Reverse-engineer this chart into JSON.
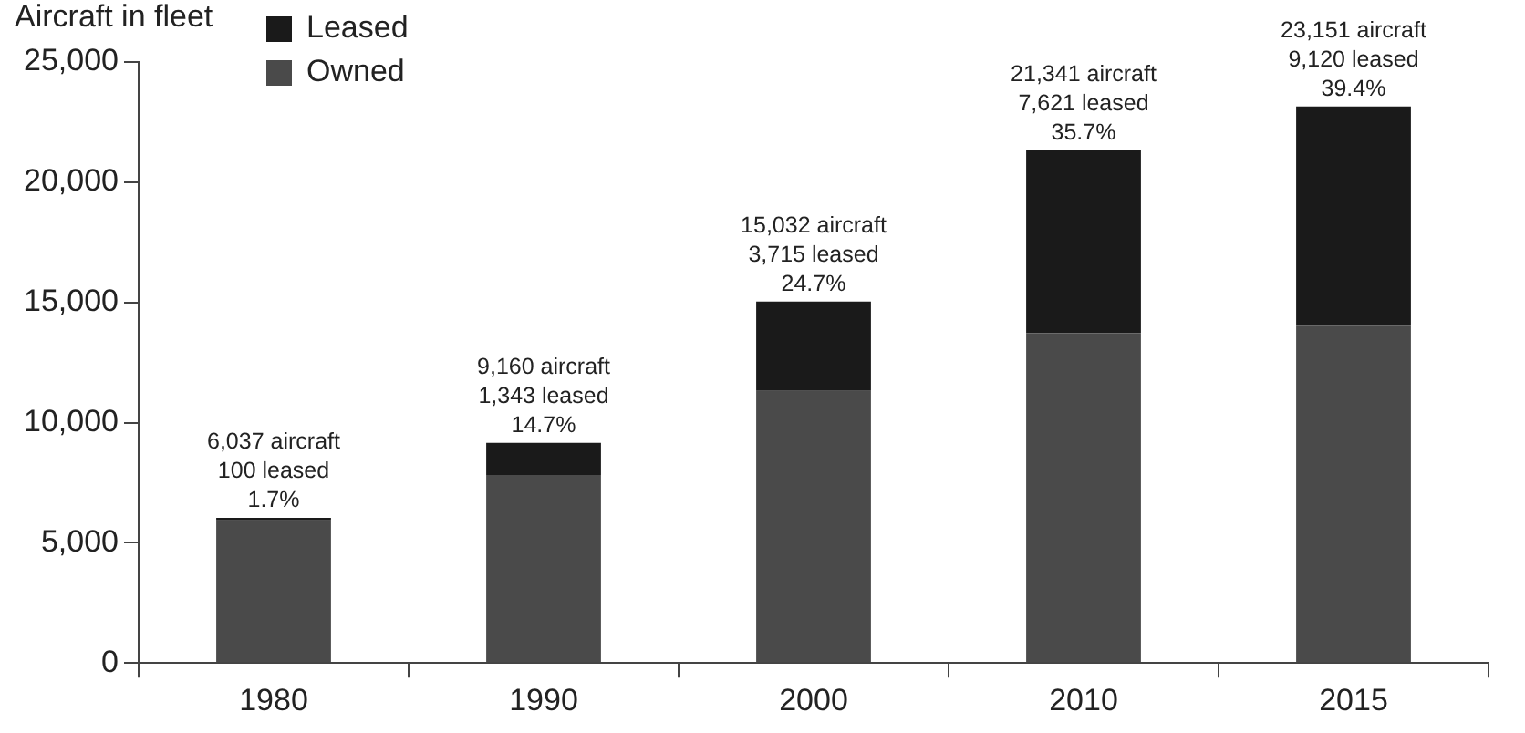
{
  "chart_data": {
    "type": "bar",
    "stacked": true,
    "ylabel": "Aircraft in fleet",
    "categories": [
      "1980",
      "1990",
      "2000",
      "2010",
      "2015"
    ],
    "series": [
      {
        "name": "Owned",
        "color": "#4a4a4a",
        "values": [
          5937,
          7817,
          11317,
          13720,
          14031
        ]
      },
      {
        "name": "Leased",
        "color": "#1a1a1a",
        "values": [
          100,
          1343,
          3715,
          7621,
          9120
        ]
      }
    ],
    "totals": [
      "6,037 aircraft\n100 leased\n1.7%",
      "9,160 aircraft\n1,343 leased\n14.7%",
      "15,032 aircraft\n3,715 leased\n24.7%",
      "21,341 aircraft\n7,621 leased\n35.7%",
      "23,151 aircraft\n9,120 leased\n39.4%"
    ],
    "ylim": [
      0,
      25000
    ],
    "yticks": [
      {
        "value": 0,
        "label": "0"
      },
      {
        "value": 5000,
        "label": "5,000"
      },
      {
        "value": 10000,
        "label": "10,000"
      },
      {
        "value": 15000,
        "label": "15,000"
      },
      {
        "value": 20000,
        "label": "20,000"
      },
      {
        "value": 25000,
        "label": "25,000"
      }
    ],
    "grid": false,
    "legend": "top left"
  }
}
